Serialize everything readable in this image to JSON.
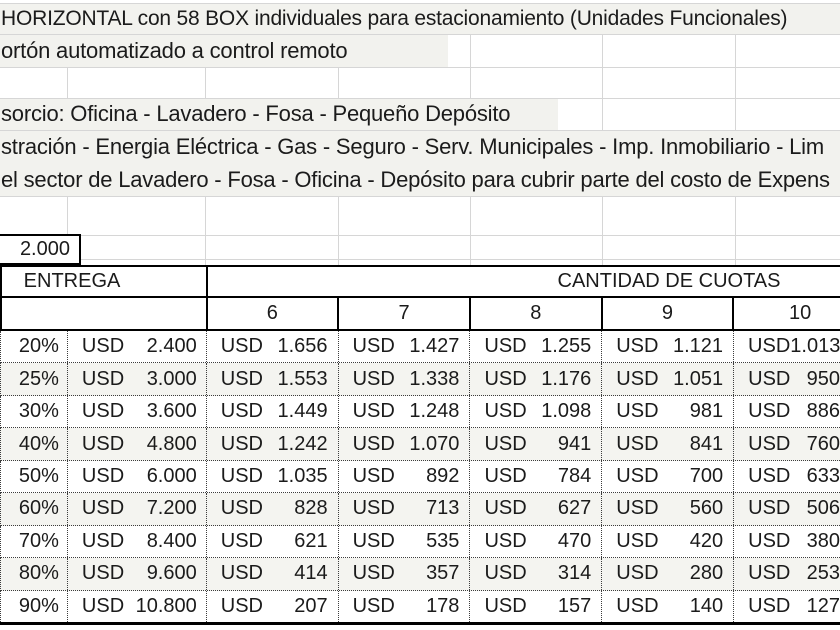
{
  "colors": {
    "grid_line": "#d6d6d6",
    "table_border": "#000000",
    "text": "#1b1b1b",
    "row_stripe": "#f4f4f0",
    "note_band": "#f2f2ee"
  },
  "notes": {
    "line1": "HORIZONTAL con 58 BOX individuales para estacionamiento (Unidades Funcionales)",
    "line2": "ortón automatizado a control remoto",
    "line3": "sorcio: Oficina - Lavadero - Fosa - Pequeño Depósito",
    "line4": "stración - Energia Eléctrica - Gas - Seguro - Serv. Municipales - Imp. Inmobiliario - Lim",
    "line5": "el sector de Lavadero - Fosa - Oficina - Depósito para cubrir parte del costo de Expens"
  },
  "price_box": {
    "value": "2.000"
  },
  "table": {
    "currency": "USD",
    "header_entrega": "ENTREGA",
    "header_cuotas": "CANTIDAD DE CUOTAS",
    "cuota_counts": [
      "6",
      "7",
      "8",
      "9",
      "10"
    ],
    "rows": [
      {
        "pct": "20%",
        "entrega": "2.400",
        "cuotas": [
          "1.656",
          "1.427",
          "1.255",
          "1.121",
          "1.013"
        ]
      },
      {
        "pct": "25%",
        "entrega": "3.000",
        "cuotas": [
          "1.553",
          "1.338",
          "1.176",
          "1.051",
          "950"
        ]
      },
      {
        "pct": "30%",
        "entrega": "3.600",
        "cuotas": [
          "1.449",
          "1.248",
          "1.098",
          "981",
          "886"
        ]
      },
      {
        "pct": "40%",
        "entrega": "4.800",
        "cuotas": [
          "1.242",
          "1.070",
          "941",
          "841",
          "760"
        ]
      },
      {
        "pct": "50%",
        "entrega": "6.000",
        "cuotas": [
          "1.035",
          "892",
          "784",
          "700",
          "633"
        ]
      },
      {
        "pct": "60%",
        "entrega": "7.200",
        "cuotas": [
          "828",
          "713",
          "627",
          "560",
          "506"
        ]
      },
      {
        "pct": "70%",
        "entrega": "8.400",
        "cuotas": [
          "621",
          "535",
          "470",
          "420",
          "380"
        ]
      },
      {
        "pct": "80%",
        "entrega": "9.600",
        "cuotas": [
          "414",
          "357",
          "314",
          "280",
          "253"
        ]
      },
      {
        "pct": "90%",
        "entrega": "10.800",
        "cuotas": [
          "207",
          "178",
          "157",
          "140",
          "127"
        ]
      }
    ]
  }
}
